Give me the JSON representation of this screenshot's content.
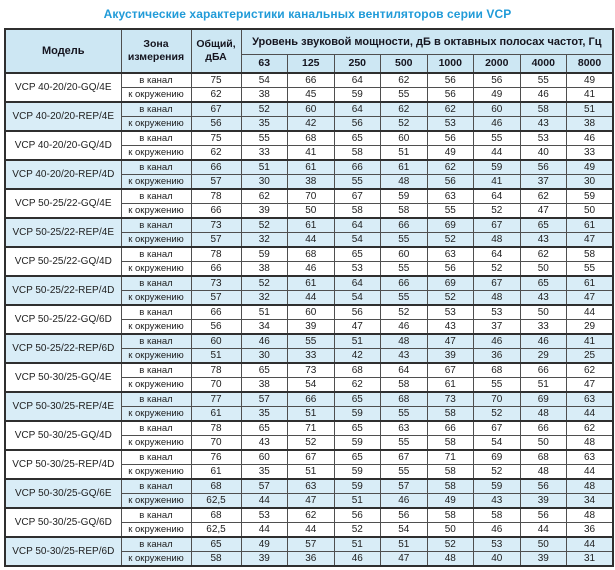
{
  "title": "Акустические характеристики канальных вентиляторов  серии VCP",
  "colors": {
    "title_text": "#219bd8",
    "header_bg": "#cde7f3",
    "shaded_row_bg": "#d9edf7",
    "border": "#4f4f4f",
    "thick_border": "#2f2f2f",
    "body_text": "#1e1e1e"
  },
  "table": {
    "headers": {
      "model": "Модель",
      "zone": "Зона\nизмерения",
      "total": "Общий,\nдБА",
      "octave": "Уровень звуковой мощности, дБ в октавных полосах частот, Гц",
      "frequencies": [
        "63",
        "125",
        "250",
        "500",
        "1000",
        "2000",
        "4000",
        "8000"
      ]
    },
    "groups": [
      {
        "model": "VCP 40-20/20-GQ/4E",
        "shaded": false,
        "rows": [
          {
            "zone": "в канал",
            "total": "75",
            "values": [
              54,
              66,
              64,
              62,
              56,
              56,
              55,
              49
            ]
          },
          {
            "zone": "к окружению",
            "total": "62",
            "values": [
              38,
              45,
              59,
              55,
              56,
              49,
              46,
              41
            ]
          }
        ]
      },
      {
        "model": "VCP 40-20/20-REP/4E",
        "shaded": true,
        "rows": [
          {
            "zone": "в канал",
            "total": "67",
            "values": [
              52,
              60,
              64,
              62,
              62,
              60,
              58,
              51
            ]
          },
          {
            "zone": "к окружению",
            "total": "56",
            "values": [
              35,
              42,
              56,
              52,
              53,
              46,
              43,
              38
            ]
          }
        ]
      },
      {
        "model": "VCP 40-20/20-GQ/4D",
        "shaded": false,
        "rows": [
          {
            "zone": "в канал",
            "total": "75",
            "values": [
              55,
              68,
              65,
              60,
              56,
              55,
              53,
              46
            ]
          },
          {
            "zone": "к окружению",
            "total": "62",
            "values": [
              33,
              41,
              58,
              51,
              49,
              44,
              40,
              33
            ]
          }
        ]
      },
      {
        "model": "VCP 40-20/20-REP/4D",
        "shaded": true,
        "rows": [
          {
            "zone": "в канал",
            "total": "66",
            "values": [
              51,
              61,
              66,
              61,
              62,
              59,
              56,
              49
            ]
          },
          {
            "zone": "к окружению",
            "total": "57",
            "values": [
              30,
              38,
              55,
              48,
              56,
              41,
              37,
              30
            ]
          }
        ]
      },
      {
        "model": "VCP 50-25/22-GQ/4E",
        "shaded": false,
        "rows": [
          {
            "zone": "в канал",
            "total": "78",
            "values": [
              62,
              70,
              67,
              59,
              63,
              64,
              62,
              59
            ]
          },
          {
            "zone": "к окружению",
            "total": "66",
            "values": [
              39,
              50,
              58,
              58,
              55,
              52,
              47,
              50
            ]
          }
        ]
      },
      {
        "model": "VCP 50-25/22-REP/4E",
        "shaded": true,
        "rows": [
          {
            "zone": "в канал",
            "total": "73",
            "values": [
              52,
              61,
              64,
              66,
              69,
              67,
              65,
              61
            ]
          },
          {
            "zone": "к окружению",
            "total": "57",
            "values": [
              32,
              44,
              54,
              55,
              52,
              48,
              43,
              47
            ]
          }
        ]
      },
      {
        "model": "VCP 50-25/22-GQ/4D",
        "shaded": false,
        "rows": [
          {
            "zone": "в канал",
            "total": "78",
            "values": [
              59,
              68,
              65,
              60,
              63,
              64,
              62,
              58
            ]
          },
          {
            "zone": "к окружению",
            "total": "66",
            "values": [
              38,
              46,
              53,
              55,
              56,
              52,
              50,
              55
            ]
          }
        ]
      },
      {
        "model": "VCP 50-25/22-REP/4D",
        "shaded": true,
        "rows": [
          {
            "zone": "в канал",
            "total": "73",
            "values": [
              52,
              61,
              64,
              66,
              69,
              67,
              65,
              61
            ]
          },
          {
            "zone": "к окружению",
            "total": "57",
            "values": [
              32,
              44,
              54,
              55,
              52,
              48,
              43,
              47
            ]
          }
        ]
      },
      {
        "model": "VCP 50-25/22-GQ/6D",
        "shaded": false,
        "rows": [
          {
            "zone": "в канал",
            "total": "66",
            "values": [
              51,
              60,
              56,
              52,
              53,
              53,
              50,
              44
            ]
          },
          {
            "zone": "к окружению",
            "total": "56",
            "values": [
              34,
              39,
              47,
              46,
              43,
              37,
              33,
              29
            ]
          }
        ]
      },
      {
        "model": "VCP 50-25/22-REP/6D",
        "shaded": true,
        "rows": [
          {
            "zone": "в канал",
            "total": "60",
            "values": [
              46,
              55,
              51,
              48,
              47,
              46,
              46,
              41
            ]
          },
          {
            "zone": "к окружению",
            "total": "51",
            "values": [
              30,
              33,
              42,
              43,
              39,
              36,
              29,
              25
            ]
          }
        ]
      },
      {
        "model": "VCP 50-30/25-GQ/4E",
        "shaded": false,
        "rows": [
          {
            "zone": "в канал",
            "total": "78",
            "values": [
              65,
              73,
              68,
              64,
              67,
              68,
              66,
              62
            ]
          },
          {
            "zone": "к окружению",
            "total": "70",
            "values": [
              38,
              54,
              62,
              58,
              61,
              55,
              51,
              47
            ]
          }
        ]
      },
      {
        "model": "VCP 50-30/25-REP/4E",
        "shaded": true,
        "rows": [
          {
            "zone": "в канал",
            "total": "77",
            "values": [
              57,
              66,
              65,
              68,
              73,
              70,
              69,
              63
            ]
          },
          {
            "zone": "к окружению",
            "total": "61",
            "values": [
              35,
              51,
              59,
              55,
              58,
              52,
              48,
              44
            ]
          }
        ]
      },
      {
        "model": "VCP 50-30/25-GQ/4D",
        "shaded": false,
        "rows": [
          {
            "zone": "в канал",
            "total": "78",
            "values": [
              65,
              71,
              65,
              63,
              66,
              67,
              66,
              62
            ]
          },
          {
            "zone": "к окружению",
            "total": "70",
            "values": [
              43,
              52,
              59,
              55,
              58,
              54,
              50,
              48
            ]
          }
        ]
      },
      {
        "model": "VCP 50-30/25-REP/4D",
        "shaded": false,
        "rows": [
          {
            "zone": "в канал",
            "total": "76",
            "values": [
              60,
              67,
              65,
              67,
              71,
              69,
              68,
              63
            ]
          },
          {
            "zone": "к окружению",
            "total": "61",
            "values": [
              35,
              51,
              59,
              55,
              58,
              52,
              48,
              44
            ]
          }
        ]
      },
      {
        "model": "VCP 50-30/25-GQ/6E",
        "shaded": true,
        "rows": [
          {
            "zone": "в канал",
            "total": "68",
            "values": [
              57,
              63,
              59,
              57,
              58,
              59,
              56,
              48
            ]
          },
          {
            "zone": "к окружению",
            "total": "62,5",
            "values": [
              44,
              47,
              51,
              46,
              49,
              43,
              39,
              34
            ]
          }
        ]
      },
      {
        "model": "VCP 50-30/25-GQ/6D",
        "shaded": false,
        "rows": [
          {
            "zone": "в канал",
            "total": "68",
            "values": [
              53,
              62,
              56,
              56,
              58,
              58,
              56,
              48
            ]
          },
          {
            "zone": "к окружению",
            "total": "62,5",
            "values": [
              44,
              44,
              52,
              54,
              50,
              46,
              44,
              36
            ]
          }
        ]
      },
      {
        "model": "VCP 50-30/25-REP/6D",
        "shaded": true,
        "rows": [
          {
            "zone": "в канал",
            "total": "65",
            "values": [
              49,
              57,
              51,
              51,
              52,
              53,
              50,
              44
            ]
          },
          {
            "zone": "к окружению",
            "total": "58",
            "values": [
              39,
              36,
              46,
              47,
              48,
              40,
              39,
              31
            ]
          }
        ]
      }
    ]
  }
}
